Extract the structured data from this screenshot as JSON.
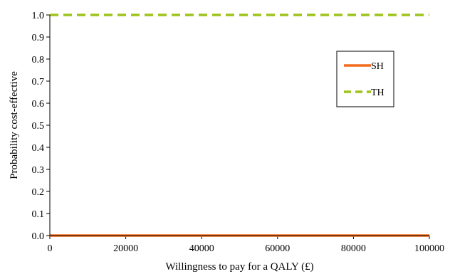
{
  "chart_data": {
    "type": "line",
    "xlabel": "Willingness to pay for a QALY (£)",
    "ylabel": "Probability cost-effective",
    "xlim": [
      0,
      100000
    ],
    "ylim": [
      0,
      1
    ],
    "xticks": [
      "0",
      "20000",
      "40000",
      "60000",
      "80000",
      "100000"
    ],
    "yticks": [
      "0.0",
      "0.1",
      "0.2",
      "0.3",
      "0.4",
      "0.5",
      "0.6",
      "0.7",
      "0.8",
      "0.9",
      "1.0"
    ],
    "grid": false,
    "legend": "right",
    "series": [
      {
        "name": "SH",
        "color": "#f26b1d",
        "dash": "solid",
        "x": [
          0,
          20000,
          40000,
          60000,
          80000,
          100000
        ],
        "values": [
          0,
          0,
          0,
          0,
          0,
          0
        ]
      },
      {
        "name": "TH",
        "color": "#9dc31a",
        "dash": "dashed",
        "x": [
          0,
          20000,
          40000,
          60000,
          80000,
          100000
        ],
        "values": [
          1,
          1,
          1,
          1,
          1,
          1
        ]
      }
    ]
  }
}
